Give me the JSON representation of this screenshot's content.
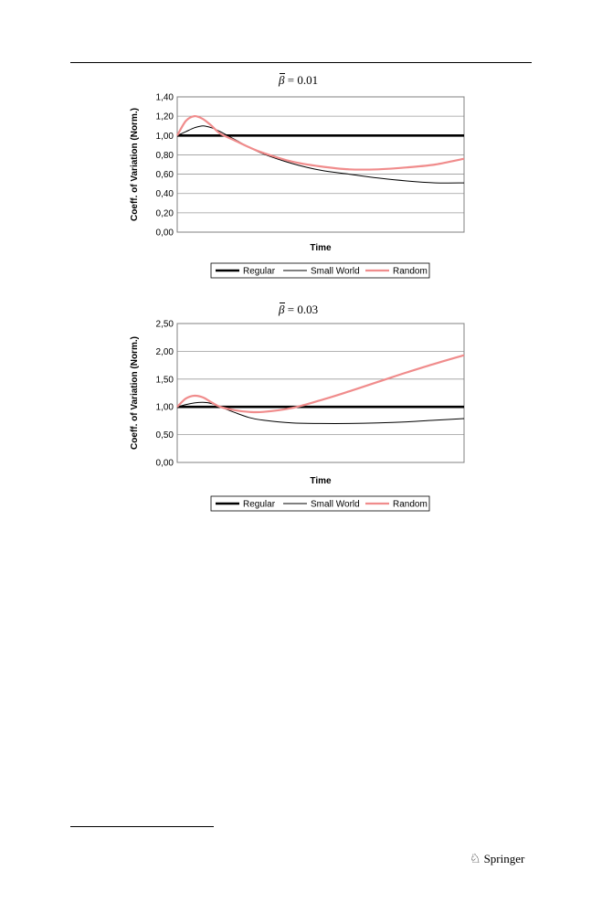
{
  "publisher": {
    "name": "Springer",
    "icon": "springer-knight-icon"
  },
  "chart_data": [
    {
      "type": "line",
      "title_symbol": "β",
      "title_rest": "= 0.01",
      "xlabel": "Time",
      "ylabel": "Coeff. of Variation (Norm.)",
      "ylim": [
        0,
        1.4
      ],
      "yticks": [
        "0,00",
        "0,20",
        "0,40",
        "0,60",
        "0,80",
        "1,00",
        "1,20",
        "1,40"
      ],
      "grid": true,
      "legend_position": "bottom",
      "x": [
        0,
        3,
        6,
        9,
        12,
        15,
        20,
        25,
        30,
        40,
        50,
        60,
        70,
        80,
        90,
        100
      ],
      "series": [
        {
          "name": "Regular",
          "color": "#000000",
          "values": [
            1.0,
            1.0,
            1.0,
            1.0,
            1.0,
            1.0,
            1.0,
            1.0,
            1.0,
            1.0,
            1.0,
            1.0,
            1.0,
            1.0,
            1.0,
            1.0
          ]
        },
        {
          "name": "Small World",
          "color": "#000000",
          "values": [
            1.0,
            1.04,
            1.08,
            1.1,
            1.08,
            1.04,
            0.96,
            0.88,
            0.81,
            0.71,
            0.64,
            0.6,
            0.56,
            0.53,
            0.51,
            0.51
          ]
        },
        {
          "name": "Random",
          "color": "#f08c8c",
          "values": [
            1.0,
            1.15,
            1.2,
            1.17,
            1.1,
            1.02,
            0.95,
            0.88,
            0.82,
            0.73,
            0.68,
            0.65,
            0.65,
            0.67,
            0.7,
            0.76
          ]
        }
      ]
    },
    {
      "type": "line",
      "title_symbol": "β",
      "title_rest": "= 0.03",
      "xlabel": "Time",
      "ylabel": "Coeff. of Variation (Norm.)",
      "ylim": [
        0,
        2.5
      ],
      "yticks": [
        "0,00",
        "0,50",
        "1,00",
        "1,50",
        "2,00",
        "2,50"
      ],
      "grid": true,
      "legend_position": "bottom",
      "x": [
        0,
        3,
        6,
        9,
        12,
        15,
        20,
        25,
        30,
        40,
        50,
        60,
        70,
        80,
        90,
        100
      ],
      "series": [
        {
          "name": "Regular",
          "color": "#000000",
          "values": [
            1.0,
            1.0,
            1.0,
            1.0,
            1.0,
            1.0,
            1.0,
            1.0,
            1.0,
            1.0,
            1.0,
            1.0,
            1.0,
            1.0,
            1.0,
            1.0
          ]
        },
        {
          "name": "Small World",
          "color": "#000000",
          "values": [
            1.0,
            1.04,
            1.07,
            1.08,
            1.06,
            1.0,
            0.9,
            0.81,
            0.76,
            0.71,
            0.7,
            0.7,
            0.71,
            0.73,
            0.76,
            0.79
          ]
        },
        {
          "name": "Random",
          "color": "#f08c8c",
          "values": [
            1.0,
            1.15,
            1.2,
            1.17,
            1.08,
            1.0,
            0.94,
            0.91,
            0.91,
            0.98,
            1.12,
            1.28,
            1.45,
            1.62,
            1.78,
            1.93
          ]
        }
      ]
    }
  ]
}
